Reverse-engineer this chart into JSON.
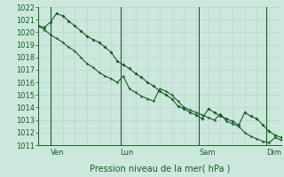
{
  "title": "Pression niveau de la mer( hPa )",
  "bg_color": "#cce8dc",
  "grid_color_minor": "#b8d8cc",
  "grid_color_major": "#a0c8b8",
  "line_color": "#1a5c2a",
  "ylim": [
    1011,
    1022
  ],
  "yticks": [
    1011,
    1012,
    1013,
    1014,
    1015,
    1016,
    1017,
    1018,
    1019,
    1020,
    1021,
    1022
  ],
  "day_labels": [
    "Ven",
    "Lun",
    "Sam",
    "Dim"
  ],
  "series1_x": [
    0,
    1,
    2,
    3,
    4,
    5,
    6,
    7,
    8,
    9,
    10,
    11,
    12,
    13,
    14,
    15,
    16,
    17,
    18,
    19,
    20,
    21,
    22,
    23,
    24,
    25,
    26,
    27,
    28,
    29,
    30,
    31,
    32,
    33,
    34,
    35,
    36,
    37,
    38,
    39,
    40
  ],
  "series1_y": [
    1020.5,
    1020.4,
    1020.8,
    1021.5,
    1021.3,
    1020.9,
    1020.5,
    1020.1,
    1019.7,
    1019.4,
    1019.2,
    1018.8,
    1018.4,
    1017.7,
    1017.4,
    1017.1,
    1016.7,
    1016.4,
    1016.0,
    1015.7,
    1015.3,
    1015.0,
    1014.7,
    1014.1,
    1013.9,
    1013.6,
    1013.4,
    1013.1,
    1013.9,
    1013.6,
    1013.3,
    1013.1,
    1012.9,
    1012.6,
    1013.6,
    1013.3,
    1013.1,
    1012.6,
    1012.1,
    1011.8,
    1011.6
  ],
  "series2_x": [
    0,
    1,
    2,
    3,
    4,
    5,
    6,
    7,
    8,
    9,
    10,
    11,
    12,
    13,
    14,
    15,
    16,
    17,
    18,
    19,
    20,
    21,
    22,
    23,
    24,
    25,
    26,
    27,
    28,
    29,
    30,
    31,
    32,
    33,
    34,
    35,
    36,
    37,
    38,
    39,
    40
  ],
  "series2_y": [
    1020.5,
    1020.2,
    1019.8,
    1019.5,
    1019.2,
    1018.8,
    1018.5,
    1018.0,
    1017.5,
    1017.2,
    1016.8,
    1016.5,
    1016.3,
    1016.0,
    1016.5,
    1015.5,
    1015.2,
    1014.9,
    1014.7,
    1014.5,
    1015.5,
    1015.3,
    1015.0,
    1014.5,
    1014.0,
    1013.8,
    1013.6,
    1013.4,
    1013.2,
    1013.0,
    1013.5,
    1012.9,
    1012.7,
    1012.5,
    1012.0,
    1011.7,
    1011.5,
    1011.3,
    1011.2,
    1011.6,
    1011.4
  ]
}
